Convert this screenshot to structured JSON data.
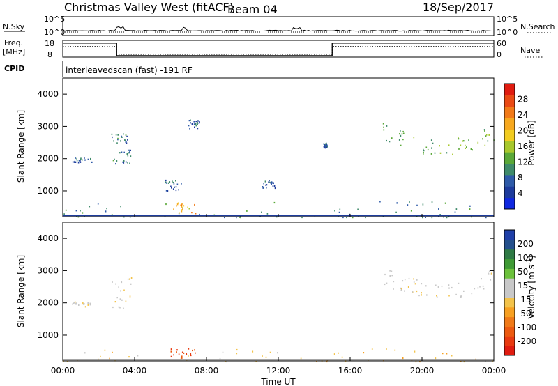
{
  "header": {
    "title": "Christmas Valley West (fitACF)",
    "beam": "Beam 04",
    "date": "18/Sep/2017"
  },
  "strip": {
    "nsky_label": "N.Sky",
    "nsearch_label": "N.Search",
    "freq_label": "Freq.",
    "freq_unit": "[MHz]",
    "nave_label": "Nave",
    "cpid_label": "CPID",
    "cpid_value": "interleavedscan (fast) -191 RF",
    "noise_ticks": [
      "10^5",
      "10^0"
    ],
    "freq_ticks": [
      "18",
      "8"
    ],
    "nave_ticks": [
      "60",
      "0"
    ],
    "freq_steps": [
      {
        "t": 0.0,
        "mhz": 16.4
      },
      {
        "t": 3.0,
        "mhz": 8.9
      },
      {
        "t": 15.0,
        "mhz": 16.4
      },
      {
        "t": 24.0,
        "mhz": 16.4
      }
    ]
  },
  "panels": {
    "power": {
      "ylabel": "Slant Range [km]",
      "colorbar_title": "Power [dB]",
      "colorbar_ticks": [
        "4",
        "8",
        "12",
        "16",
        "20",
        "24",
        "28"
      ],
      "colorbar_colors": [
        "#1028e0",
        "#1d3b9c",
        "#2e5aa8",
        "#3f8a6a",
        "#5aa838",
        "#a8c82c",
        "#f2cc20",
        "#f7a81e",
        "#f27a18",
        "#ea4a14",
        "#e01c10"
      ]
    },
    "velocity": {
      "ylabel": "Slant Range [km]",
      "colorbar_title": "Velocity [m s",
      "colorbar_title_sup": "-1",
      "colorbar_title_end": "]",
      "colorbar_ticks": [
        "200",
        "100",
        "50",
        "15",
        "-15",
        "-50",
        "-100",
        "-200"
      ],
      "colorbar_colors": [
        "#1f3fa8",
        "#24508c",
        "#2f7a45",
        "#3f9a35",
        "#6cc13c",
        "#c8c8c8",
        "#c8c8c8",
        "#f3c34a",
        "#f7a021",
        "#f07a18",
        "#ec5a10",
        "#e83a10",
        "#e01c10"
      ]
    },
    "xlabel": "Time UT"
  },
  "chart_data": [
    {
      "type": "heatmap",
      "title": "Power [dB]",
      "xlabel": "Time UT",
      "ylabel": "Slant Range [km]",
      "xlim": [
        0,
        24
      ],
      "ylim": [
        200,
        4500
      ],
      "x_ticks": [
        "00:00",
        "04:00",
        "08:00",
        "12:00",
        "16:00",
        "20:00",
        "00:00"
      ],
      "y_ticks": [
        1000,
        2000,
        3000,
        4000
      ],
      "colorbar_range": [
        0,
        30
      ],
      "regions": [
        {
          "t0": 0.5,
          "t1": 1.6,
          "r0": 1900,
          "r1": 2050,
          "level": 6
        },
        {
          "t0": 2.6,
          "t1": 3.6,
          "r0": 2500,
          "r1": 2800,
          "level": 7
        },
        {
          "t0": 2.7,
          "t1": 3.8,
          "r0": 1850,
          "r1": 2300,
          "level": 7
        },
        {
          "t0": 5.7,
          "t1": 6.6,
          "r0": 1000,
          "r1": 1350,
          "level": 6
        },
        {
          "t0": 6.9,
          "t1": 7.6,
          "r0": 2950,
          "r1": 3250,
          "level": 6
        },
        {
          "t0": 11.0,
          "t1": 11.8,
          "r0": 1100,
          "r1": 1350,
          "level": 6
        },
        {
          "t0": 14.5,
          "t1": 14.7,
          "r0": 2350,
          "r1": 2500,
          "level": 6
        },
        {
          "t0": 17.8,
          "t1": 24.0,
          "r0": 1800,
          "r1": 3300,
          "level": 12
        },
        {
          "t0": 0.0,
          "t1": 24.0,
          "r0": 200,
          "r1": 700,
          "level": 9
        },
        {
          "t0": 6.0,
          "t1": 7.4,
          "r0": 300,
          "r1": 650,
          "level": 20
        }
      ]
    },
    {
      "type": "heatmap",
      "title": "Velocity [m s-1]",
      "xlabel": "Time UT",
      "ylabel": "Slant Range [km]",
      "xlim": [
        0,
        24
      ],
      "ylim": [
        200,
        4500
      ],
      "x_ticks": [
        "00:00",
        "04:00",
        "08:00",
        "12:00",
        "16:00",
        "20:00",
        "00:00"
      ],
      "y_ticks": [
        1000,
        2000,
        3000,
        4000
      ],
      "colorbar_range": [
        -200,
        200
      ],
      "regions": [
        {
          "t0": 0.5,
          "t1": 1.6,
          "r0": 1900,
          "r1": 2050,
          "vel": 0
        },
        {
          "t0": 2.7,
          "t1": 3.8,
          "r0": 1850,
          "r1": 2800,
          "vel": -10
        },
        {
          "t0": 17.8,
          "t1": 24.0,
          "r0": 1800,
          "r1": 3300,
          "vel": 0
        },
        {
          "t0": 0.0,
          "t1": 24.0,
          "r0": 200,
          "r1": 600,
          "vel": -40
        },
        {
          "t0": 6.0,
          "t1": 7.4,
          "r0": 300,
          "r1": 650,
          "vel": -150
        }
      ]
    }
  ]
}
